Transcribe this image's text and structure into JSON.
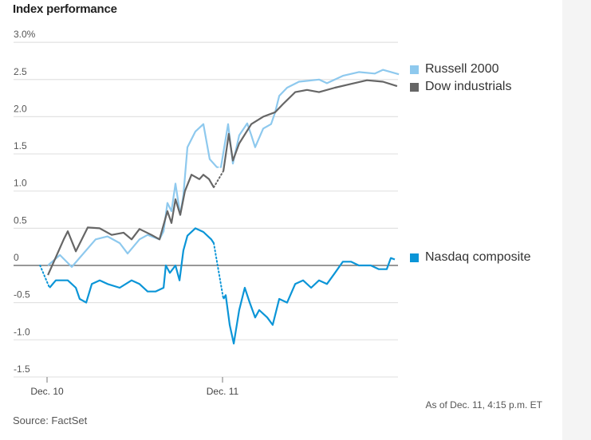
{
  "chart_data": {
    "type": "line",
    "title": "Index performance",
    "xlabel": "",
    "ylabel": "",
    "ylim": [
      -1.5,
      3.0
    ],
    "yticks": [
      {
        "value": 3.0,
        "label": "3.0%"
      },
      {
        "value": 2.5,
        "label": "2.5"
      },
      {
        "value": 2.0,
        "label": "2.0"
      },
      {
        "value": 1.5,
        "label": "1.5"
      },
      {
        "value": 1.0,
        "label": "1.0"
      },
      {
        "value": 0.5,
        "label": "0.5"
      },
      {
        "value": 0,
        "label": "0"
      },
      {
        "value": -0.5,
        "label": "-0.5"
      },
      {
        "value": -1.0,
        "label": "-1.0"
      },
      {
        "value": -1.5,
        "label": "-1.5"
      }
    ],
    "x_unit": "trading days since Dec. 10 session start",
    "xticks": [
      {
        "value": 0,
        "label": "Dec. 10"
      },
      {
        "value": 1,
        "label": "Dec. 11"
      }
    ],
    "xlim": [
      -0.04,
      2.01
    ],
    "grid": true,
    "legend_placement": "right",
    "series": [
      {
        "name": "Russell 2000",
        "color": "#8ec9ee",
        "segments": [
          [
            [
              0.005,
              0
            ],
            [
              0.073,
              0.14
            ],
            [
              0.141,
              -0.02
            ],
            [
              0.277,
              0.35
            ],
            [
              0.345,
              0.39
            ],
            [
              0.414,
              0.3
            ],
            [
              0.459,
              0.16
            ],
            [
              0.527,
              0.35
            ],
            [
              0.573,
              0.41
            ],
            [
              0.641,
              0.35
            ],
            [
              0.664,
              0.46
            ],
            [
              0.686,
              0.84
            ],
            [
              0.709,
              0.73
            ],
            [
              0.732,
              1.1
            ],
            [
              0.759,
              0.68
            ],
            [
              0.777,
              0.94
            ],
            [
              0.8,
              1.59
            ],
            [
              0.845,
              1.8
            ],
            [
              0.891,
              1.9
            ],
            [
              0.927,
              1.43
            ],
            [
              0.968,
              1.32
            ]
          ],
          [
            [
              0.991,
              1.32
            ],
            [
              1.032,
              1.9
            ],
            [
              1.059,
              1.37
            ],
            [
              1.095,
              1.75
            ],
            [
              1.141,
              1.91
            ],
            [
              1.164,
              1.75
            ],
            [
              1.186,
              1.59
            ],
            [
              1.232,
              1.84
            ],
            [
              1.277,
              1.9
            ],
            [
              1.3,
              2.06
            ],
            [
              1.323,
              2.28
            ],
            [
              1.368,
              2.39
            ],
            [
              1.436,
              2.47
            ],
            [
              1.55,
              2.5
            ],
            [
              1.595,
              2.45
            ],
            [
              1.686,
              2.55
            ],
            [
              1.777,
              2.6
            ],
            [
              1.868,
              2.58
            ],
            [
              1.914,
              2.63
            ],
            [
              2.005,
              2.57
            ]
          ]
        ]
      },
      {
        "name": "Dow industrials",
        "color": "#666666",
        "segments": [
          [
            [
              0.005,
              -0.13
            ],
            [
              0.095,
              0.35
            ],
            [
              0.118,
              0.46
            ],
            [
              0.164,
              0.19
            ],
            [
              0.232,
              0.51
            ],
            [
              0.3,
              0.5
            ],
            [
              0.368,
              0.41
            ],
            [
              0.436,
              0.44
            ],
            [
              0.482,
              0.35
            ],
            [
              0.527,
              0.49
            ],
            [
              0.595,
              0.41
            ],
            [
              0.641,
              0.35
            ],
            [
              0.686,
              0.73
            ],
            [
              0.709,
              0.57
            ],
            [
              0.732,
              0.89
            ],
            [
              0.759,
              0.68
            ],
            [
              0.786,
              1.0
            ],
            [
              0.823,
              1.22
            ],
            [
              0.868,
              1.16
            ],
            [
              0.891,
              1.22
            ],
            [
              0.923,
              1.16
            ],
            [
              0.95,
              1.05
            ]
          ],
          [
            [
              1.005,
              1.27
            ],
            [
              1.036,
              1.77
            ],
            [
              1.059,
              1.41
            ],
            [
              1.095,
              1.64
            ],
            [
              1.164,
              1.9
            ],
            [
              1.232,
              2.0
            ],
            [
              1.3,
              2.06
            ],
            [
              1.345,
              2.17
            ],
            [
              1.414,
              2.33
            ],
            [
              1.482,
              2.36
            ],
            [
              1.55,
              2.33
            ],
            [
              1.641,
              2.39
            ],
            [
              1.732,
              2.44
            ],
            [
              1.823,
              2.49
            ],
            [
              1.914,
              2.47
            ],
            [
              1.995,
              2.41
            ]
          ]
        ]
      },
      {
        "name": "Nasdaq composite",
        "color": "#0b95d7",
        "prior": [
          -0.04,
          0
        ],
        "segments": [
          [
            [
              0.014,
              -0.3
            ],
            [
              0.05,
              -0.2
            ],
            [
              0.118,
              -0.2
            ],
            [
              0.164,
              -0.3
            ],
            [
              0.186,
              -0.45
            ],
            [
              0.223,
              -0.5
            ],
            [
              0.255,
              -0.25
            ],
            [
              0.3,
              -0.2
            ],
            [
              0.345,
              -0.25
            ],
            [
              0.414,
              -0.3
            ],
            [
              0.482,
              -0.2
            ],
            [
              0.527,
              -0.25
            ],
            [
              0.573,
              -0.35
            ],
            [
              0.618,
              -0.35
            ],
            [
              0.664,
              -0.3
            ],
            [
              0.677,
              0.0
            ],
            [
              0.7,
              -0.1
            ],
            [
              0.732,
              0.0
            ],
            [
              0.755,
              -0.2
            ],
            [
              0.777,
              0.2
            ],
            [
              0.8,
              0.4
            ],
            [
              0.845,
              0.5
            ],
            [
              0.891,
              0.45
            ],
            [
              0.936,
              0.35
            ],
            [
              0.95,
              0.3
            ]
          ],
          [
            [
              1.005,
              -0.45
            ],
            [
              1.018,
              -0.4
            ],
            [
              1.041,
              -0.8
            ],
            [
              1.064,
              -1.05
            ],
            [
              1.095,
              -0.6
            ],
            [
              1.127,
              -0.3
            ],
            [
              1.155,
              -0.5
            ],
            [
              1.186,
              -0.7
            ],
            [
              1.209,
              -0.6
            ],
            [
              1.255,
              -0.7
            ],
            [
              1.286,
              -0.8
            ],
            [
              1.323,
              -0.45
            ],
            [
              1.368,
              -0.5
            ],
            [
              1.414,
              -0.25
            ],
            [
              1.459,
              -0.2
            ],
            [
              1.505,
              -0.3
            ],
            [
              1.55,
              -0.2
            ],
            [
              1.595,
              -0.25
            ],
            [
              1.641,
              -0.1
            ],
            [
              1.686,
              0.05
            ],
            [
              1.732,
              0.05
            ],
            [
              1.777,
              0.0
            ],
            [
              1.845,
              0.0
            ],
            [
              1.891,
              -0.05
            ],
            [
              1.936,
              -0.05
            ],
            [
              1.959,
              0.1
            ],
            [
              1.982,
              0.08
            ]
          ]
        ]
      }
    ],
    "annotations": {
      "as_of": "As of Dec. 11, 4:15 p.m. ET",
      "source": "Source: FactSet"
    }
  }
}
